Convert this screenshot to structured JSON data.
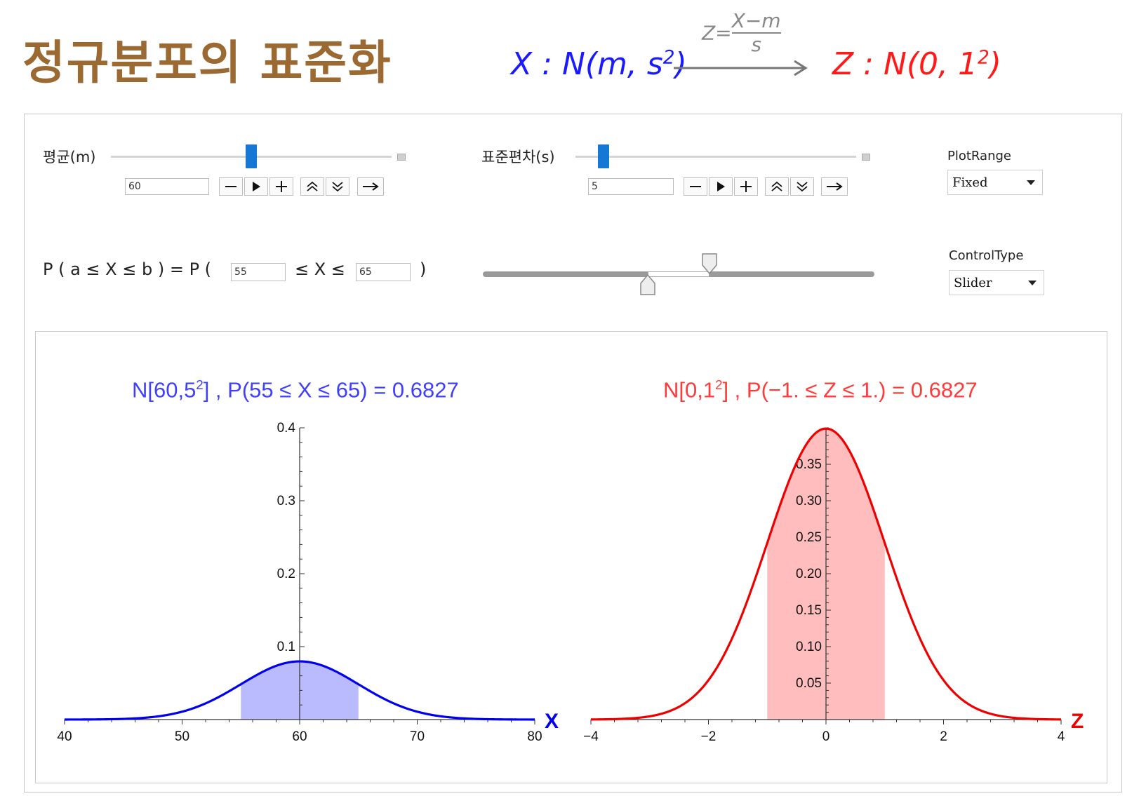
{
  "title": "정규분포의 표준화",
  "formula": {
    "left": "X : N(m, s",
    "left_sup": "2",
    "left_close": ")",
    "frac_prefix": "Z=",
    "frac_num": "X−m",
    "frac_den": "s",
    "right": "Z : N(0, 1",
    "right_sup": "2",
    "right_close": ")"
  },
  "controls": {
    "mean": {
      "label": "평균(m)",
      "value": "60",
      "slider_fraction": 0.5
    },
    "sd": {
      "label": "표준편차(s)",
      "value": "5",
      "slider_fraction": 0.1
    },
    "plotrange": {
      "label": "PlotRange",
      "selected": "Fixed"
    },
    "controltype": {
      "label": "ControlType",
      "selected": "Slider"
    },
    "prob": {
      "label_left": "P ( a ≤ X ≤ b ) = P (",
      "a": "55",
      "mid": "≤ X ≤",
      "b": "65",
      "close": ")",
      "range_low_fraction": 0.42,
      "range_high_fraction": 0.58
    }
  },
  "icons": {
    "minus": "minus-icon",
    "play": "play-icon",
    "plus": "plus-icon",
    "faster": "double-up-icon",
    "slower": "double-down-icon",
    "direction": "right-arrow-icon"
  },
  "colors": {
    "title": "#9B6A32",
    "blue": "#1a1aff",
    "red": "#ff1a1a",
    "slider": "#1478d4"
  },
  "chart_data": [
    {
      "type": "area",
      "title": "N[60,5",
      "title_sup": "2",
      "title_rest": "] , P(55 ≤ X ≤ 65) = 0.6827",
      "xlabel": "X",
      "ylabel": "",
      "xlim": [
        40,
        80
      ],
      "ylim": [
        0,
        0.4
      ],
      "mean": 60,
      "sd": 5,
      "shade": [
        55,
        65
      ],
      "probability": 0.6827,
      "xticks": [
        "40",
        "50",
        "60",
        "70",
        "80"
      ],
      "yticks": [
        "0.1",
        "0.2",
        "0.3",
        "0.4"
      ],
      "color": "#0000ee",
      "fill": "#babaff"
    },
    {
      "type": "area",
      "title": "N[0,1",
      "title_sup": "2",
      "title_rest": "] , P(−1. ≤ Z ≤ 1.) = 0.6827",
      "xlabel": "Z",
      "ylabel": "",
      "xlim": [
        -4,
        4
      ],
      "ylim": [
        0,
        0.4
      ],
      "mean": 0,
      "sd": 1,
      "shade": [
        -1,
        1
      ],
      "probability": 0.6827,
      "xticks": [
        "−4",
        "−2",
        "0",
        "2",
        "4"
      ],
      "yticks": [
        "0.05",
        "0.10",
        "0.15",
        "0.20",
        "0.25",
        "0.30",
        "0.35"
      ],
      "color": "#ee0000",
      "fill": "#ffbdbd"
    }
  ]
}
